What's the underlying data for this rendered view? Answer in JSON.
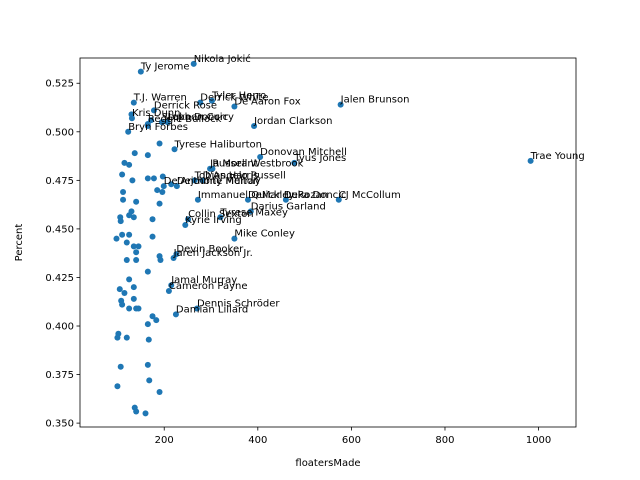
{
  "chart_data": {
    "type": "scatter",
    "title": "",
    "xlabel": "floatersMade",
    "ylabel": "Percent",
    "xlim": [
      20,
      1080
    ],
    "ylim": [
      0.348,
      0.538
    ],
    "x_ticks": [
      200,
      400,
      600,
      800,
      1000
    ],
    "y_ticks": [
      0.35,
      0.375,
      0.4,
      0.425,
      0.45,
      0.475,
      0.5,
      0.525
    ],
    "y_tick_labels": [
      "0.350",
      "0.375",
      "0.400",
      "0.425",
      "0.450",
      "0.475",
      "0.500",
      "0.525"
    ],
    "grid": false,
    "marker_color": "#1f77b4",
    "labeled_points": [
      {
        "label": "Nikola Jokić",
        "x": 263,
        "y": 0.535
      },
      {
        "label": "Ty Jerome",
        "x": 150,
        "y": 0.531
      },
      {
        "label": "Tyler Herro",
        "x": 302,
        "y": 0.516
      },
      {
        "label": "T.J. Warren",
        "x": 135,
        "y": 0.515
      },
      {
        "label": "Derrick White",
        "x": 277,
        "y": 0.515
      },
      {
        "label": "De'Aaron Fox",
        "x": 350,
        "y": 0.513
      },
      {
        "label": "Jalen Brunson",
        "x": 577,
        "y": 0.514
      },
      {
        "label": "Derrick Rose",
        "x": 178,
        "y": 0.511
      },
      {
        "label": "Kris Dunn",
        "x": 131,
        "y": 0.507
      },
      {
        "label": "Reggie Bullock",
        "x": 165,
        "y": 0.504
      },
      {
        "label": "Stephen Curry",
        "x": 195,
        "y": 0.505
      },
      {
        "label": "Luka Doncic",
        "x": 207,
        "y": 0.505
      },
      {
        "label": "Jordan Clarkson",
        "x": 392,
        "y": 0.503
      },
      {
        "label": "Bryn Forbes",
        "x": 123,
        "y": 0.5
      },
      {
        "label": "Tyrese Haliburton",
        "x": 222,
        "y": 0.491
      },
      {
        "label": "Donovan Mitchell",
        "x": 405,
        "y": 0.487
      },
      {
        "label": "Trae Young",
        "x": 983,
        "y": 0.485
      },
      {
        "label": "Tyus Jones",
        "x": 478,
        "y": 0.484
      },
      {
        "label": "Ja Morant",
        "x": 298,
        "y": 0.481
      },
      {
        "label": "Russell Westbrook",
        "x": 303,
        "y": 0.481
      },
      {
        "label": "Tobias Harris",
        "x": 265,
        "y": 0.475
      },
      {
        "label": "D'Angelo Russell",
        "x": 282,
        "y": 0.475
      },
      {
        "label": "De'Anthony Melton",
        "x": 199,
        "y": 0.472
      },
      {
        "label": "Dejounte Murray",
        "x": 227,
        "y": 0.472
      },
      {
        "label": "Immanuel Quickley",
        "x": 272,
        "y": 0.465
      },
      {
        "label": "DeMar DeRozan",
        "x": 379,
        "y": 0.465
      },
      {
        "label": "Luka Doncic",
        "x": 460,
        "y": 0.465
      },
      {
        "label": "CJ McCollum",
        "x": 573,
        "y": 0.465
      },
      {
        "label": "Tyrese Maxey",
        "x": 320,
        "y": 0.456
      },
      {
        "label": "Darius Garland",
        "x": 385,
        "y": 0.459
      },
      {
        "label": "Collin Sexton",
        "x": 251,
        "y": 0.455
      },
      {
        "label": "Kyrie Irving",
        "x": 245,
        "y": 0.452
      },
      {
        "label": "Mike Conley",
        "x": 350,
        "y": 0.445
      },
      {
        "label": "Devin Booker",
        "x": 226,
        "y": 0.437
      },
      {
        "label": "Jaren Jackson Jr.",
        "x": 220,
        "y": 0.435
      },
      {
        "label": "Jamal Murray",
        "x": 215,
        "y": 0.421
      },
      {
        "label": "Cameron Payne",
        "x": 210,
        "y": 0.418
      },
      {
        "label": "Dennis Schröder",
        "x": 270,
        "y": 0.409
      },
      {
        "label": "Damian Lillard",
        "x": 225,
        "y": 0.406
      }
    ],
    "unlabeled_points": [
      {
        "x": 130,
        "y": 0.509
      },
      {
        "x": 172,
        "y": 0.506
      },
      {
        "x": 165,
        "y": 0.503
      },
      {
        "x": 190,
        "y": 0.494
      },
      {
        "x": 137,
        "y": 0.489
      },
      {
        "x": 165,
        "y": 0.488
      },
      {
        "x": 115,
        "y": 0.484
      },
      {
        "x": 125,
        "y": 0.483
      },
      {
        "x": 110,
        "y": 0.478
      },
      {
        "x": 132,
        "y": 0.475
      },
      {
        "x": 165,
        "y": 0.476
      },
      {
        "x": 178,
        "y": 0.476
      },
      {
        "x": 197,
        "y": 0.477
      },
      {
        "x": 215,
        "y": 0.473
      },
      {
        "x": 185,
        "y": 0.47
      },
      {
        "x": 112,
        "y": 0.469
      },
      {
        "x": 196,
        "y": 0.469
      },
      {
        "x": 112,
        "y": 0.465
      },
      {
        "x": 140,
        "y": 0.464
      },
      {
        "x": 190,
        "y": 0.463
      },
      {
        "x": 130,
        "y": 0.459
      },
      {
        "x": 125,
        "y": 0.457
      },
      {
        "x": 106,
        "y": 0.456
      },
      {
        "x": 107,
        "y": 0.454
      },
      {
        "x": 135,
        "y": 0.456
      },
      {
        "x": 175,
        "y": 0.455
      },
      {
        "x": 98,
        "y": 0.445
      },
      {
        "x": 110,
        "y": 0.447
      },
      {
        "x": 125,
        "y": 0.447
      },
      {
        "x": 120,
        "y": 0.443
      },
      {
        "x": 135,
        "y": 0.441
      },
      {
        "x": 145,
        "y": 0.441
      },
      {
        "x": 175,
        "y": 0.446
      },
      {
        "x": 140,
        "y": 0.438
      },
      {
        "x": 120,
        "y": 0.434
      },
      {
        "x": 140,
        "y": 0.434
      },
      {
        "x": 190,
        "y": 0.436
      },
      {
        "x": 192,
        "y": 0.434
      },
      {
        "x": 165,
        "y": 0.428
      },
      {
        "x": 125,
        "y": 0.424
      },
      {
        "x": 135,
        "y": 0.42
      },
      {
        "x": 105,
        "y": 0.419
      },
      {
        "x": 115,
        "y": 0.417
      },
      {
        "x": 108,
        "y": 0.413
      },
      {
        "x": 135,
        "y": 0.414
      },
      {
        "x": 110,
        "y": 0.411
      },
      {
        "x": 125,
        "y": 0.409
      },
      {
        "x": 140,
        "y": 0.409
      },
      {
        "x": 145,
        "y": 0.409
      },
      {
        "x": 175,
        "y": 0.405
      },
      {
        "x": 183,
        "y": 0.403
      },
      {
        "x": 165,
        "y": 0.401
      },
      {
        "x": 102,
        "y": 0.396
      },
      {
        "x": 100,
        "y": 0.394
      },
      {
        "x": 120,
        "y": 0.394
      },
      {
        "x": 167,
        "y": 0.393
      },
      {
        "x": 107,
        "y": 0.379
      },
      {
        "x": 165,
        "y": 0.38
      },
      {
        "x": 100,
        "y": 0.369
      },
      {
        "x": 168,
        "y": 0.372
      },
      {
        "x": 190,
        "y": 0.366
      },
      {
        "x": 137,
        "y": 0.358
      },
      {
        "x": 140,
        "y": 0.356
      },
      {
        "x": 160,
        "y": 0.355
      }
    ]
  }
}
